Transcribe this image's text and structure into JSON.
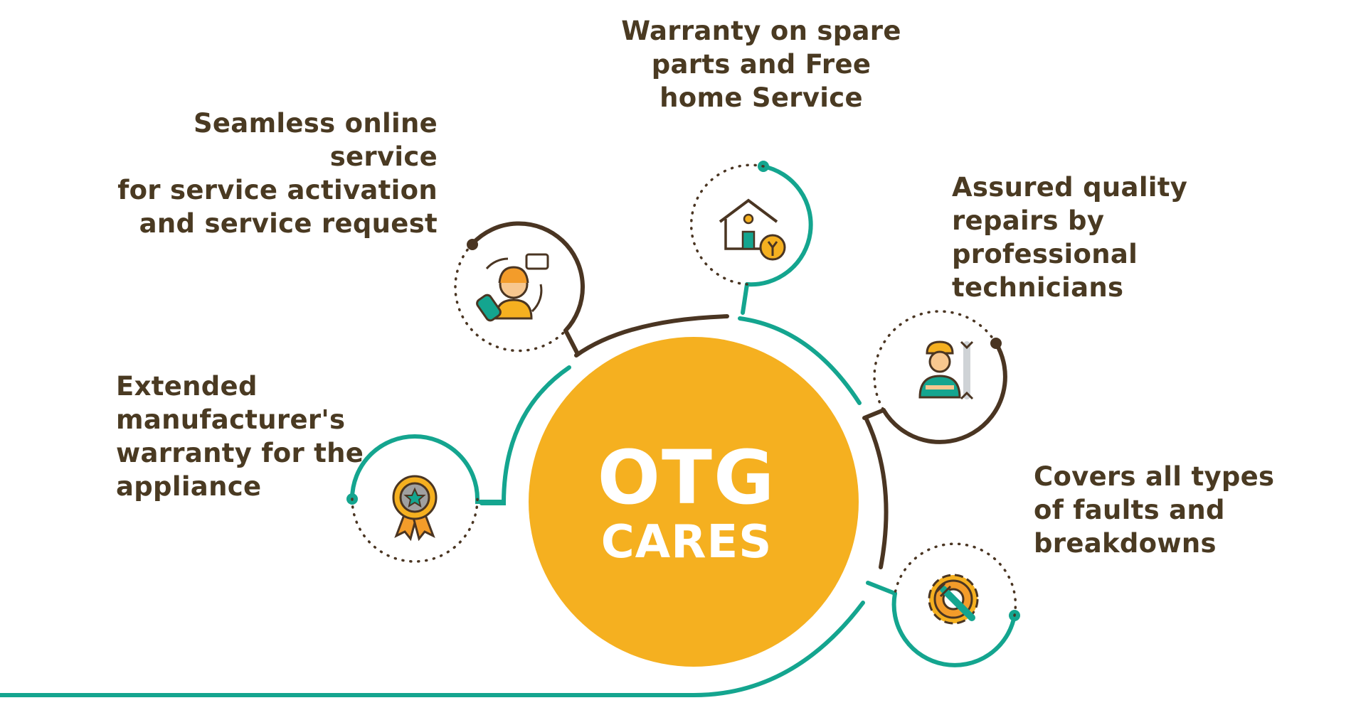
{
  "colors": {
    "teal": "#14a58f",
    "brown": "#4a3522",
    "hub": "#f5b020",
    "text": "#4a3a22",
    "dots": "#4a3522"
  },
  "hub": {
    "line1": "OTG",
    "line2": "CARES"
  },
  "features": [
    {
      "id": "online-service",
      "text": "Seamless online service\nfor service activation\nand service request",
      "icon": "customer-support-icon"
    },
    {
      "id": "spare-parts",
      "text": "Warranty on spare\nparts and Free\nhome Service",
      "icon": "home-repair-icon"
    },
    {
      "id": "quality-repairs",
      "text": "Assured quality\nrepairs by professional\ntechnicians",
      "icon": "technician-icon"
    },
    {
      "id": "extended-warranty",
      "text": "Extended manufacturer's\nwarranty for the\nappliance",
      "icon": "award-badge-icon"
    },
    {
      "id": "faults-coverage",
      "text": "Covers all types\nof faults and\nbreakdowns",
      "icon": "gear-wrench-icon"
    }
  ]
}
